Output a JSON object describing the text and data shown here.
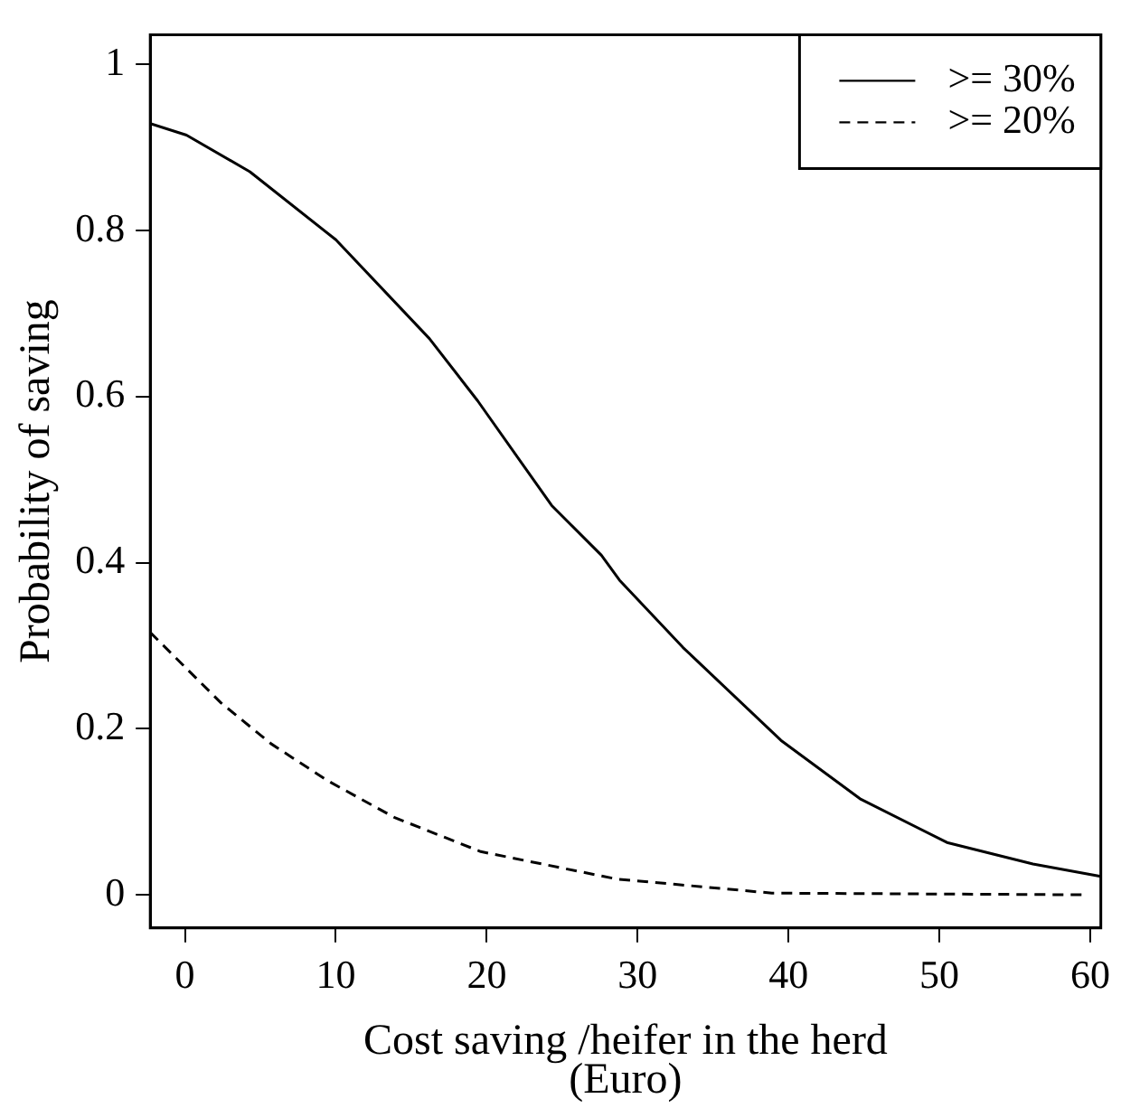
{
  "chart_data": {
    "type": "line",
    "xlabel": "Cost saving /heifer in the herd\n(Euro)",
    "ylabel": "Probability of saving",
    "xlim": [
      -2.3,
      60.7
    ],
    "xticks": [
      0,
      10,
      20,
      30,
      40,
      50,
      60
    ],
    "ylim": [
      -0.04,
      1.036
    ],
    "yticks": [
      0,
      0.2,
      0.4,
      0.6,
      0.8,
      1
    ],
    "grid": false,
    "legend": "top right",
    "marker": "none",
    "series": [
      {
        "name": ">= 30%",
        "color": "#000000",
        "line_style": "solid",
        "x": [
          -2.3,
          0.1,
          4.3,
          10.0,
          16.2,
          19.4,
          24.3,
          27.6,
          28.8,
          33.0,
          39.5,
          44.8,
          50.5,
          56.2,
          60.7
        ],
        "values": [
          0.929,
          0.915,
          0.871,
          0.789,
          0.67,
          0.595,
          0.469,
          0.409,
          0.379,
          0.298,
          0.186,
          0.115,
          0.063,
          0.037,
          0.022
        ]
      },
      {
        "name": ">= 20%",
        "color": "#000000",
        "line_style": "dashed",
        "x": [
          -2.3,
          2.4,
          5.7,
          9.4,
          13.9,
          19.6,
          28.6,
          38.9,
          59.5
        ],
        "values": [
          0.316,
          0.231,
          0.182,
          0.138,
          0.093,
          0.052,
          0.019,
          0.002,
          0
        ]
      }
    ]
  }
}
